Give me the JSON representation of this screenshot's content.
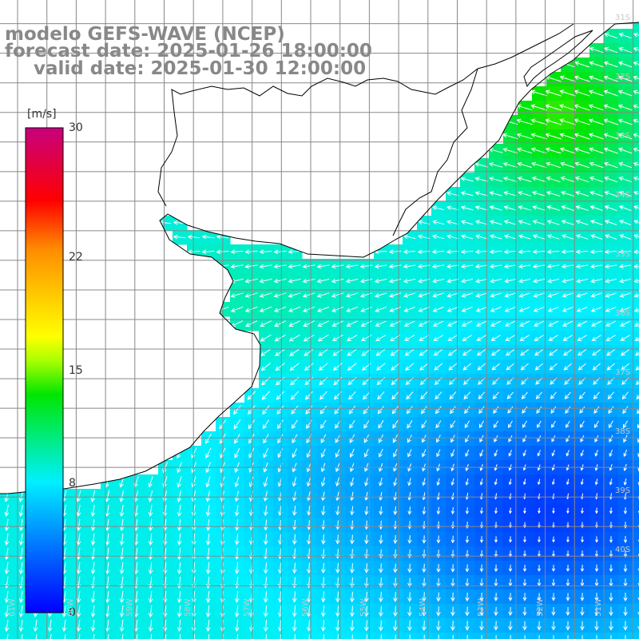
{
  "title": {
    "line1": "modelo GEFS-WAVE (NCEP)",
    "line2": "forecast date: 2025-01-26 18:00:00",
    "line3": "valid date: 2025-01-30 12:00:00"
  },
  "colorbar": {
    "unit": "[m/s]",
    "min": 0,
    "max": 30,
    "ticks": [
      "30",
      "22",
      "15",
      "8",
      "0"
    ],
    "tick_values": [
      30,
      22,
      15,
      8,
      0
    ],
    "colors": [
      "#0000ff",
      "#00b4ff",
      "#00ffee",
      "#00ff00",
      "#ffff00",
      "#ff8c00",
      "#ff0000",
      "#c8007e"
    ]
  },
  "grid": {
    "lat_labels": [
      "31S",
      "32S",
      "33S",
      "34S",
      "35S",
      "36S",
      "37S",
      "38S",
      "39S",
      "40S"
    ],
    "lat_values": [
      -31,
      -32,
      -33,
      -34,
      -35,
      -36,
      -37,
      -38,
      -39,
      -40
    ],
    "lon_labels": [
      "61W",
      "60W",
      "59W",
      "58W",
      "57W",
      "56W",
      "55W",
      "54W",
      "53W",
      "52W",
      "51W"
    ],
    "lon_values": [
      -61,
      -60,
      -59,
      -58,
      -57,
      -56,
      -55,
      -54,
      -53,
      -52,
      -51
    ],
    "lon_range": [
      -61.3,
      -50.4
    ],
    "lat_range": [
      -30.6,
      -41.4
    ]
  },
  "colors": {
    "land": "#ffffff",
    "coast": "#000000",
    "gridline": "#888888",
    "arrow": "#ffffff"
  }
}
